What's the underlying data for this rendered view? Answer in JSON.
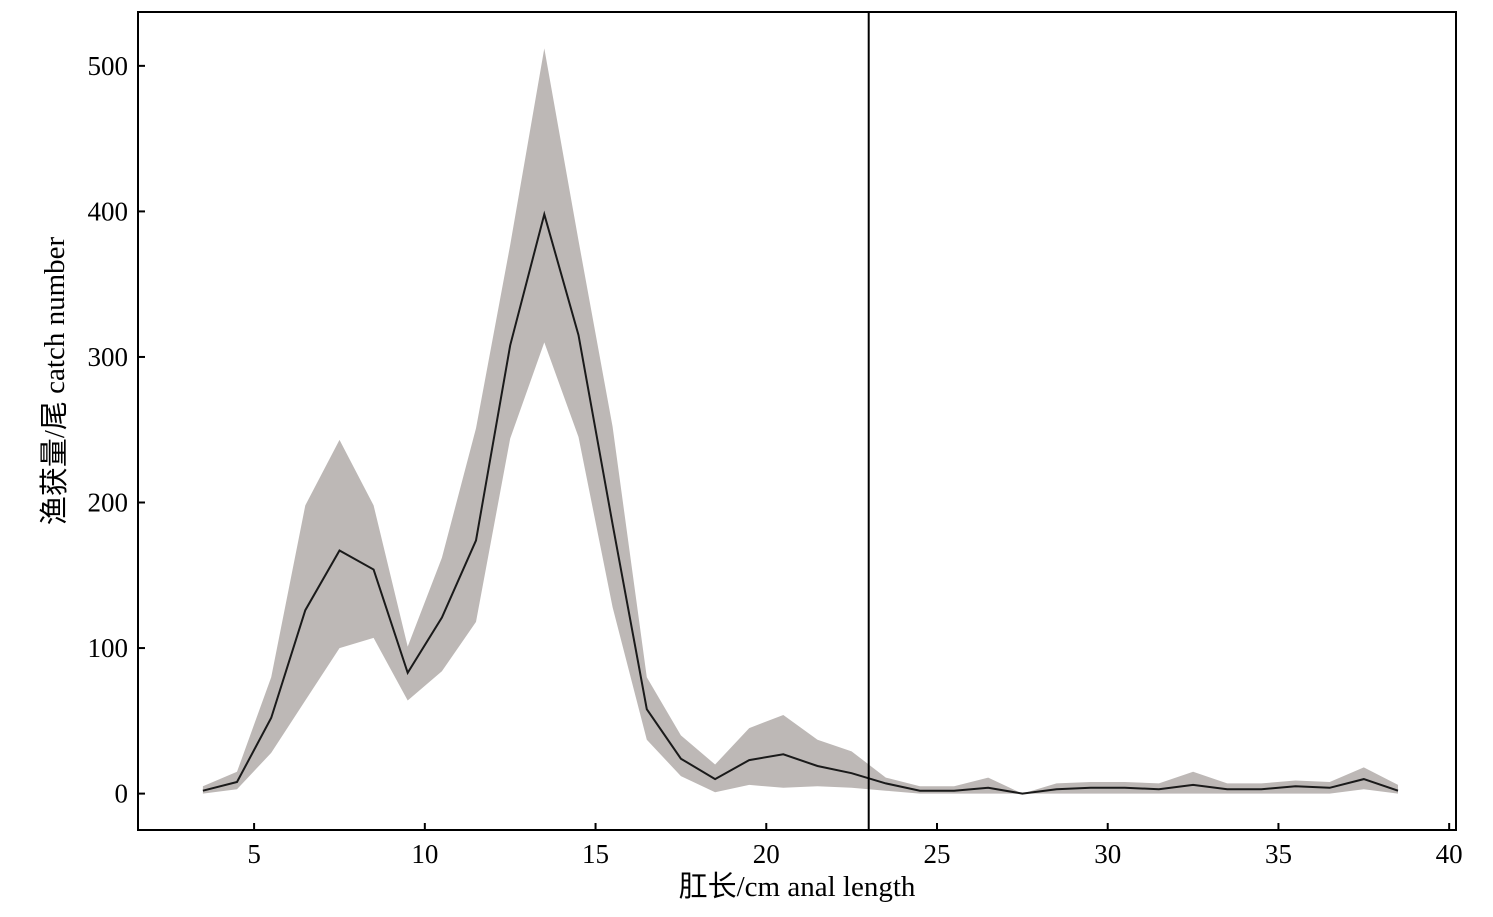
{
  "chart_data": {
    "type": "area",
    "title": "",
    "xlabel": "肛长/cm anal length",
    "ylabel": "渔获量/尾 catch number",
    "xlim": [
      1.6,
      40.2
    ],
    "ylim": [
      -25,
      537
    ],
    "xticks": [
      5,
      10,
      15,
      20,
      25,
      30,
      35,
      40
    ],
    "yticks": [
      0,
      100,
      200,
      300,
      400,
      500
    ],
    "grid": false,
    "vline_x": 23,
    "x": [
      3.5,
      4.5,
      5.5,
      6.5,
      7.5,
      8.5,
      9.5,
      10.5,
      11.5,
      12.5,
      13.5,
      14.5,
      15.5,
      16.5,
      17.5,
      18.5,
      19.5,
      20.5,
      21.5,
      22.5,
      23.5,
      24.5,
      25.5,
      26.5,
      27.5,
      28.5,
      29.5,
      30.5,
      31.5,
      32.5,
      33.5,
      34.5,
      35.5,
      36.5,
      37.5,
      38.5
    ],
    "series": [
      {
        "values": [
          2,
          8,
          52,
          126,
          167,
          154,
          83,
          121,
          174,
          308,
          398,
          315,
          185,
          58,
          24,
          10,
          23,
          27,
          19,
          14,
          7,
          2,
          2,
          4,
          0,
          3,
          4,
          4,
          3,
          6,
          3,
          3,
          5,
          4,
          10,
          2
        ]
      }
    ],
    "band": {
      "lower": [
        0,
        3,
        28,
        64,
        100,
        107,
        64,
        84,
        118,
        244,
        310,
        245,
        128,
        37,
        12,
        1,
        6,
        4,
        5,
        4,
        2,
        0,
        0,
        0,
        0,
        0,
        0,
        0,
        0,
        0,
        0,
        0,
        0,
        0,
        3,
        0
      ],
      "upper": [
        5,
        15,
        80,
        198,
        243,
        198,
        101,
        162,
        251,
        377,
        512,
        380,
        252,
        80,
        40,
        20,
        45,
        54,
        37,
        29,
        11,
        5,
        5,
        11,
        0,
        7,
        8,
        8,
        7,
        15,
        7,
        7,
        9,
        8,
        18,
        6
      ]
    },
    "colors": {
      "band": "#bdb8b6",
      "line": "#1a1a1a",
      "axes": "#000000"
    }
  }
}
